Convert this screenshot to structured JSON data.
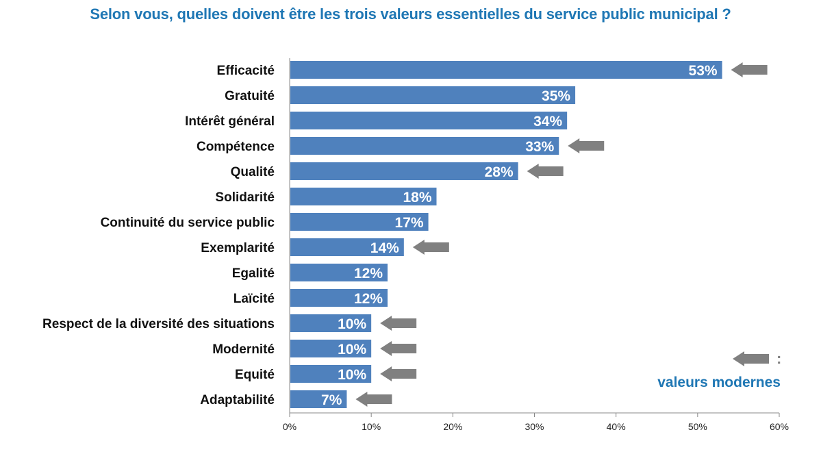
{
  "chart_data": {
    "type": "bar",
    "orientation": "horizontal",
    "title": "Selon vous, quelles doivent être les trois valeurs essentielles du service public municipal ?",
    "categories": [
      "Efficacité",
      "Gratuité",
      "Intérêt général",
      "Compétence",
      "Qualité",
      "Solidarité",
      "Continuité du service public",
      "Exemplarité",
      "Egalité",
      "Laïcité",
      "Respect de la diversité des situations",
      "Modernité",
      "Equité",
      "Adaptabilité"
    ],
    "values": [
      53,
      35,
      34,
      33,
      28,
      18,
      17,
      14,
      12,
      12,
      10,
      10,
      10,
      7
    ],
    "value_labels": [
      "53%",
      "35%",
      "34%",
      "33%",
      "28%",
      "18%",
      "17%",
      "14%",
      "12%",
      "12%",
      "10%",
      "10%",
      "10%",
      "7%"
    ],
    "highlighted": [
      true,
      false,
      false,
      true,
      true,
      false,
      false,
      true,
      false,
      false,
      true,
      true,
      true,
      true
    ],
    "xlim": [
      0,
      60
    ],
    "xticks": [
      "0%",
      "10%",
      "20%",
      "30%",
      "40%",
      "50%",
      "60%"
    ],
    "grid": false,
    "legend": {
      "marker": "arrow",
      "colon": ":",
      "label": "valeurs modernes",
      "placement": "bottom-right"
    },
    "colors": {
      "bar": "#4f81bd",
      "arrow": "#808080",
      "title": "#1f77b4"
    }
  }
}
